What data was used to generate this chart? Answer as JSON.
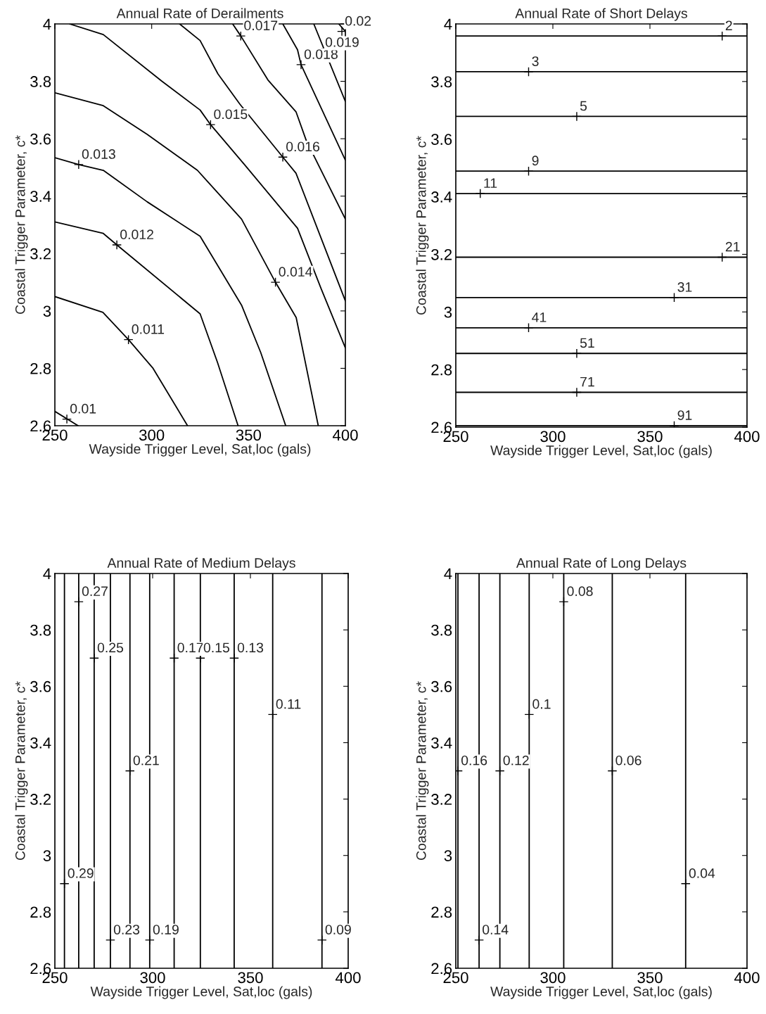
{
  "chart_data": [
    {
      "type": "line",
      "title": "Annual Rate of Derailments",
      "xlabel": "Wayside Trigger Level, Sat,loc (gals)",
      "ylabel": "Coastal Trigger Parameter, c*",
      "xlim": [
        250,
        400
      ],
      "ylim": [
        2.6,
        4
      ],
      "xticks": [
        250,
        300,
        350,
        400
      ],
      "yticks": [
        2.6,
        2.8,
        3,
        3.2,
        3.4,
        3.6,
        3.8,
        4
      ],
      "series": [
        {
          "color": "#000000",
          "x": [
            250,
            262
          ],
          "values": [
            2.65,
            2.6
          ]
        },
        {
          "color": "#000000",
          "x": [
            250,
            274.8,
            288,
            300.7,
            318.5
          ],
          "values": [
            3.05,
            2.995,
            2.9,
            2.8,
            2.6
          ]
        },
        {
          "color": "#000000",
          "x": [
            250,
            275,
            282,
            325,
            334,
            344.6
          ],
          "values": [
            3.31,
            3.27,
            3.23,
            2.99,
            2.82,
            2.6
          ]
        },
        {
          "color": "#000000",
          "x": [
            250,
            262.3,
            275,
            297.7,
            325,
            346.4,
            356.3,
            369.2
          ],
          "values": [
            3.534,
            3.51,
            3.49,
            3.38,
            3.26,
            3.02,
            2.855,
            2.6
          ]
        },
        {
          "color": "#000000",
          "x": [
            250,
            275,
            297.7,
            323.6,
            346.4,
            363.9,
            374.6,
            386
          ],
          "values": [
            3.76,
            3.715,
            3.615,
            3.49,
            3.32,
            3.1,
            2.977,
            2.6
          ]
        },
        {
          "color": "#000000",
          "x": [
            257.6,
            275,
            305.3,
            325,
            330.4,
            347.9,
            375.3,
            387.5,
            400
          ],
          "values": [
            4.0,
            3.963,
            3.8,
            3.7,
            3.649,
            3.51,
            3.288,
            3.077,
            2.871
          ]
        },
        {
          "color": "#000000",
          "x": [
            314.4,
            325,
            334.2,
            345.6,
            367.7,
            374.5,
            400
          ],
          "values": [
            4.0,
            3.942,
            3.826,
            3.72,
            3.536,
            3.48,
            3.035
          ]
        },
        {
          "color": "#000000",
          "x": [
            341.8,
            346,
            360,
            374.5,
            379.8,
            400
          ],
          "values": [
            4.0,
            3.958,
            3.805,
            3.694,
            3.594,
            3.32
          ]
        },
        {
          "color": "#000000",
          "x": [
            367.7,
            375.3,
            377.1,
            400
          ],
          "values": [
            4.0,
            3.91,
            3.858,
            3.525
          ]
        },
        {
          "color": "#000000",
          "x": [
            383.7,
            400
          ],
          "values": [
            4.0,
            3.73
          ]
        },
        {
          "color": "#000000",
          "x": [
            396.6,
            400
          ],
          "values": [
            4.0,
            3.974
          ]
        }
      ],
      "annotations": [
        {
          "text": "0.01",
          "x": 256.2,
          "y": 2.623
        },
        {
          "text": "0.011",
          "x": 288,
          "y": 2.9
        },
        {
          "text": "0.012",
          "x": 282,
          "y": 3.23
        },
        {
          "text": "0.013",
          "x": 262.3,
          "y": 3.51
        },
        {
          "text": "0.014",
          "x": 363.9,
          "y": 3.1
        },
        {
          "text": "0.015",
          "x": 330.4,
          "y": 3.649
        },
        {
          "text": "0.016",
          "x": 367.7,
          "y": 3.536
        },
        {
          "text": "0.017",
          "x": 346,
          "y": 3.958
        },
        {
          "text": "0.018",
          "x": 377.1,
          "y": 3.858
        },
        {
          "text": "0.019",
          "x": 388,
          "y": 3.9
        },
        {
          "text": "0.02",
          "x": 398.2,
          "y": 3.974
        }
      ]
    },
    {
      "type": "line",
      "title": "Annual Rate of Short Delays",
      "xlabel": "Wayside Trigger Level, Sat,loc (gals)",
      "ylabel": "Coastal Trigger Parameter, c*",
      "xlim": [
        250,
        400
      ],
      "ylim": [
        2.6,
        4
      ],
      "xticks": [
        250,
        300,
        350,
        400
      ],
      "yticks": [
        2.6,
        2.8,
        3,
        3.2,
        3.4,
        3.6,
        3.8,
        4
      ],
      "series": [
        {
          "color": "#000000",
          "x": [
            250,
            400
          ],
          "values": [
            3.958,
            3.958
          ]
        },
        {
          "color": "#000000",
          "x": [
            250,
            400
          ],
          "values": [
            3.834,
            3.834
          ]
        },
        {
          "color": "#000000",
          "x": [
            250,
            400
          ],
          "values": [
            3.679,
            3.679
          ]
        },
        {
          "color": "#000000",
          "x": [
            250,
            400
          ],
          "values": [
            3.489,
            3.489
          ]
        },
        {
          "color": "#000000",
          "x": [
            250,
            400
          ],
          "values": [
            3.411,
            3.411
          ]
        },
        {
          "color": "#000000",
          "x": [
            250,
            400
          ],
          "values": [
            3.19,
            3.19
          ]
        },
        {
          "color": "#000000",
          "x": [
            250,
            400
          ],
          "values": [
            3.05,
            3.05
          ]
        },
        {
          "color": "#000000",
          "x": [
            250,
            400
          ],
          "values": [
            2.945,
            2.945
          ]
        },
        {
          "color": "#000000",
          "x": [
            250,
            400
          ],
          "values": [
            2.856,
            2.856
          ]
        },
        {
          "color": "#000000",
          "x": [
            250,
            400
          ],
          "values": [
            2.721,
            2.721
          ]
        },
        {
          "color": "#000000",
          "x": [
            250,
            400
          ],
          "values": [
            2.605,
            2.605
          ]
        }
      ],
      "annotations": [
        {
          "text": "2",
          "x": 387.2,
          "y": 3.958
        },
        {
          "text": "3",
          "x": 287.5,
          "y": 3.834
        },
        {
          "text": "5",
          "x": 312.3,
          "y": 3.679
        },
        {
          "text": "9",
          "x": 287.5,
          "y": 3.489
        },
        {
          "text": "11",
          "x": 262.6,
          "y": 3.411
        },
        {
          "text": "21",
          "x": 387.2,
          "y": 3.19
        },
        {
          "text": "31",
          "x": 362.5,
          "y": 3.05
        },
        {
          "text": "41",
          "x": 287.5,
          "y": 2.945
        },
        {
          "text": "51",
          "x": 312.3,
          "y": 2.856
        },
        {
          "text": "71",
          "x": 312.3,
          "y": 2.721
        },
        {
          "text": "91",
          "x": 362.5,
          "y": 2.605
        }
      ]
    },
    {
      "type": "line",
      "title": "Annual Rate of Medium Delays",
      "xlabel": "Wayside Trigger Level, Sat,loc (gals)",
      "ylabel": "Coastal Trigger Parameter, c*",
      "xlim": [
        250,
        400
      ],
      "ylim": [
        2.6,
        4
      ],
      "xticks": [
        250,
        300,
        350,
        400
      ],
      "yticks": [
        2.6,
        2.8,
        3,
        3.2,
        3.4,
        3.6,
        3.8,
        4
      ],
      "series": [
        {
          "color": "#000000",
          "x": [
            254.9,
            254.9
          ],
          "values": [
            2.6,
            4
          ]
        },
        {
          "color": "#000000",
          "x": [
            262.2,
            262.2
          ],
          "values": [
            2.6,
            4
          ]
        },
        {
          "color": "#000000",
          "x": [
            270.1,
            270.1
          ],
          "values": [
            2.6,
            4
          ]
        },
        {
          "color": "#000000",
          "x": [
            278.4,
            278.4
          ],
          "values": [
            2.6,
            4
          ]
        },
        {
          "color": "#000000",
          "x": [
            288.4,
            288.4
          ],
          "values": [
            2.6,
            4
          ]
        },
        {
          "color": "#000000",
          "x": [
            298.5,
            298.5
          ],
          "values": [
            2.6,
            4
          ]
        },
        {
          "color": "#000000",
          "x": [
            311,
            311
          ],
          "values": [
            2.6,
            4
          ]
        },
        {
          "color": "#000000",
          "x": [
            324.4,
            324.4
          ],
          "values": [
            2.6,
            4
          ]
        },
        {
          "color": "#000000",
          "x": [
            341.7,
            341.7
          ],
          "values": [
            2.6,
            4
          ]
        },
        {
          "color": "#000000",
          "x": [
            361.4,
            361.4
          ],
          "values": [
            2.6,
            4
          ]
        },
        {
          "color": "#000000",
          "x": [
            386.6,
            386.6
          ],
          "values": [
            2.6,
            4
          ]
        }
      ],
      "annotations": [
        {
          "text": "0.29",
          "x": 254.9,
          "y": 2.9
        },
        {
          "text": "0.27",
          "x": 262.2,
          "y": 3.9
        },
        {
          "text": "0.25",
          "x": 270.1,
          "y": 3.7
        },
        {
          "text": "0.23",
          "x": 278.4,
          "y": 2.7
        },
        {
          "text": "0.21",
          "x": 288.4,
          "y": 3.3
        },
        {
          "text": "0.19",
          "x": 298.5,
          "y": 2.7
        },
        {
          "text": "0.17",
          "x": 311,
          "y": 3.7
        },
        {
          "text": "0.15",
          "x": 324.4,
          "y": 3.7
        },
        {
          "text": "0.13",
          "x": 341.7,
          "y": 3.7
        },
        {
          "text": "0.11",
          "x": 361.4,
          "y": 3.5
        },
        {
          "text": "0.09",
          "x": 386.6,
          "y": 2.7
        }
      ]
    },
    {
      "type": "line",
      "title": "Annual Rate of Long Delays",
      "xlabel": "Wayside Trigger Level, Sat,loc (gals)",
      "ylabel": "Coastal Trigger Parameter, c*",
      "xlim": [
        250,
        400
      ],
      "ylim": [
        2.6,
        4
      ],
      "xticks": [
        250,
        300,
        350,
        400
      ],
      "yticks": [
        2.6,
        2.8,
        3,
        3.2,
        3.4,
        3.6,
        3.8,
        4
      ],
      "series": [
        {
          "color": "#000000",
          "x": [
            251.1,
            251.1
          ],
          "values": [
            2.6,
            4
          ]
        },
        {
          "color": "#000000",
          "x": [
            262,
            262
          ],
          "values": [
            2.6,
            4
          ]
        },
        {
          "color": "#000000",
          "x": [
            272.7,
            272.7
          ],
          "values": [
            2.6,
            4
          ]
        },
        {
          "color": "#000000",
          "x": [
            287.8,
            287.8
          ],
          "values": [
            2.6,
            4
          ]
        },
        {
          "color": "#000000",
          "x": [
            305.6,
            305.6
          ],
          "values": [
            2.6,
            4
          ]
        },
        {
          "color": "#000000",
          "x": [
            330.6,
            330.6
          ],
          "values": [
            2.6,
            4
          ]
        },
        {
          "color": "#000000",
          "x": [
            368.4,
            368.4
          ],
          "values": [
            2.6,
            4
          ]
        }
      ],
      "annotations": [
        {
          "text": "0.16",
          "x": 251.1,
          "y": 3.3
        },
        {
          "text": "0.14",
          "x": 262,
          "y": 2.7
        },
        {
          "text": "0.12",
          "x": 272.7,
          "y": 3.3
        },
        {
          "text": "0.1",
          "x": 287.8,
          "y": 3.5
        },
        {
          "text": "0.08",
          "x": 305.6,
          "y": 3.9
        },
        {
          "text": "0.06",
          "x": 330.6,
          "y": 3.3
        },
        {
          "text": "0.04",
          "x": 368.4,
          "y": 2.9
        }
      ]
    }
  ]
}
